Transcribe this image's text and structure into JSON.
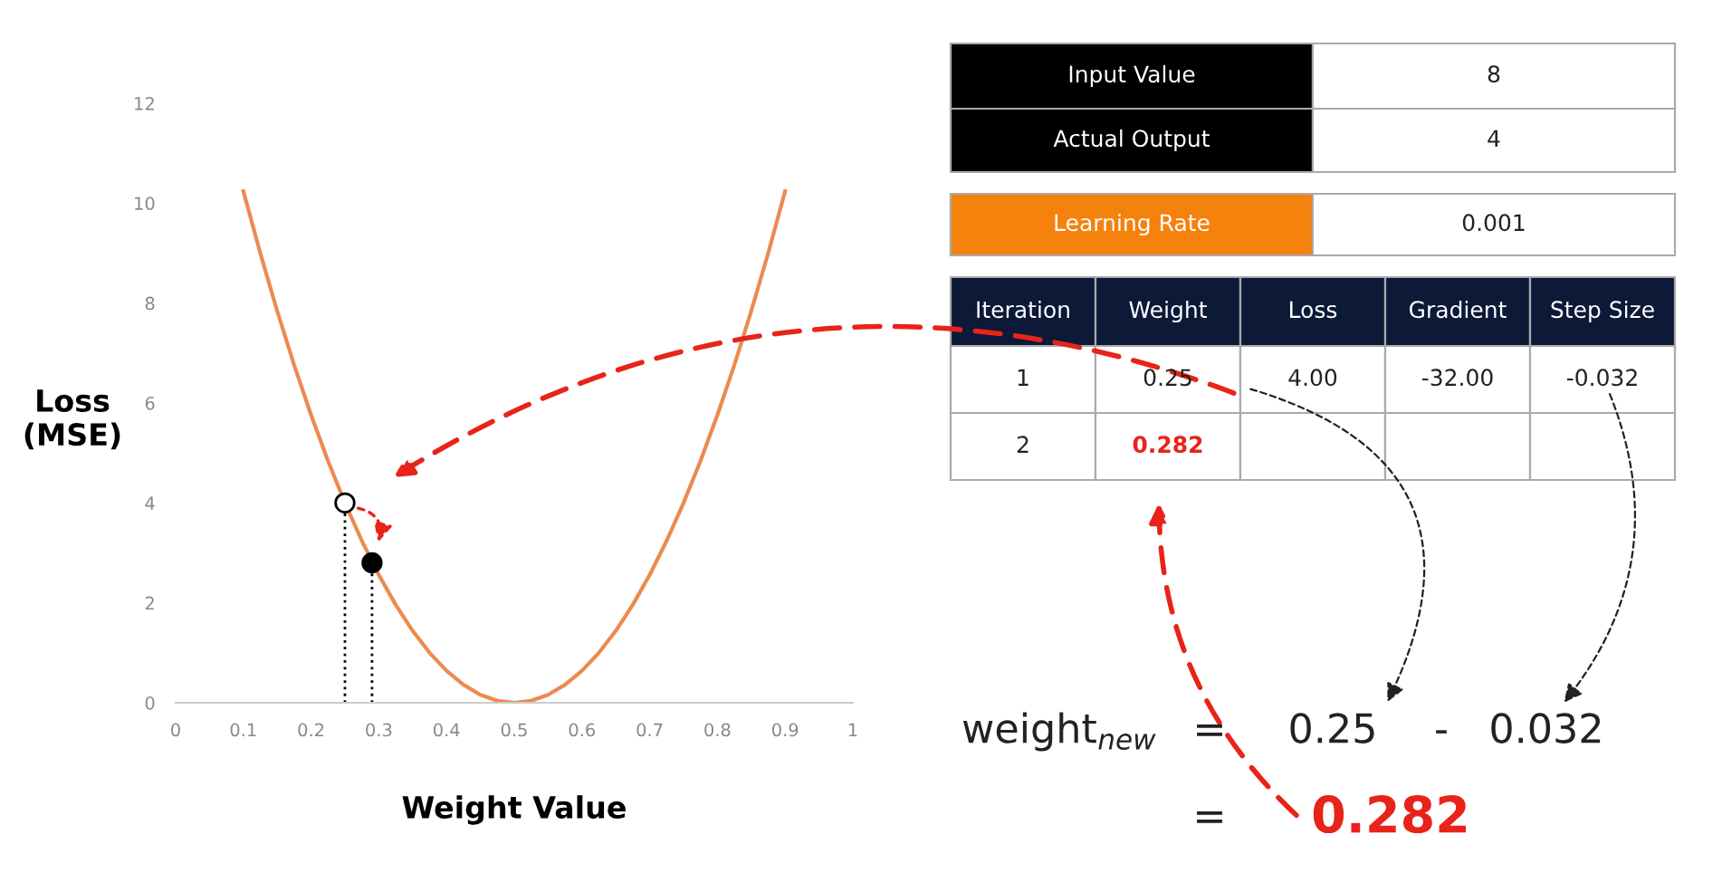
{
  "chart_data": {
    "type": "line",
    "xlabel": "Weight Value",
    "ylabel": "Loss\n(MSE)",
    "xlim": [
      0,
      1
    ],
    "ylim": [
      0,
      12
    ],
    "xticks": [
      0,
      0.1,
      0.2,
      0.3,
      0.4,
      0.5,
      0.6,
      0.7,
      0.8,
      0.9,
      1
    ],
    "yticks": [
      0,
      2,
      4,
      6,
      8,
      10,
      12
    ],
    "grid": false,
    "legend": false,
    "series": [
      {
        "color": "#ec8a4f",
        "x": [
          0.1,
          0.125,
          0.15,
          0.175,
          0.2,
          0.225,
          0.25,
          0.275,
          0.3,
          0.325,
          0.35,
          0.375,
          0.4,
          0.425,
          0.45,
          0.475,
          0.5,
          0.525,
          0.55,
          0.575,
          0.6,
          0.625,
          0.65,
          0.675,
          0.7,
          0.725,
          0.75,
          0.775,
          0.8,
          0.825,
          0.85,
          0.875,
          0.9
        ],
        "values": [
          10.24,
          9.0,
          7.84,
          6.76,
          5.76,
          4.84,
          4.0,
          3.24,
          2.56,
          1.96,
          1.44,
          1.0,
          0.64,
          0.36,
          0.16,
          0.04,
          0,
          0.04,
          0.16,
          0.36,
          0.64,
          1.0,
          1.44,
          1.96,
          2.56,
          3.24,
          4.0,
          4.84,
          5.76,
          6.76,
          7.84,
          9.0,
          10.24
        ]
      },
      {
        "color": "#000000",
        "line_style": "dotted",
        "x": [
          0.25,
          0.25
        ],
        "values": [
          0,
          4.0
        ]
      },
      {
        "color": "#000000",
        "line_style": "dotted",
        "x": [
          0.29,
          0.29
        ],
        "values": [
          0,
          2.8
        ]
      },
      {
        "type": "scatter",
        "color": "#ffffff",
        "x": [
          0.25
        ],
        "values": [
          4.0
        ]
      },
      {
        "type": "scatter",
        "color": "#000000",
        "x": [
          0.29
        ],
        "values": [
          2.8
        ]
      }
    ],
    "annotations": [
      "Input Value",
      "8",
      "Actual Output",
      "4",
      "Learning Rate",
      "0.001",
      "Iteration",
      "Weight",
      "Loss",
      "Gradient",
      "Step Size",
      "1",
      "0.25",
      "4.00",
      "-32.00",
      "-0.032",
      "2",
      "0.282",
      "weight$_{new}$",
      "=",
      "0.25",
      "-",
      "0.032",
      "=",
      "0.282"
    ]
  }
}
